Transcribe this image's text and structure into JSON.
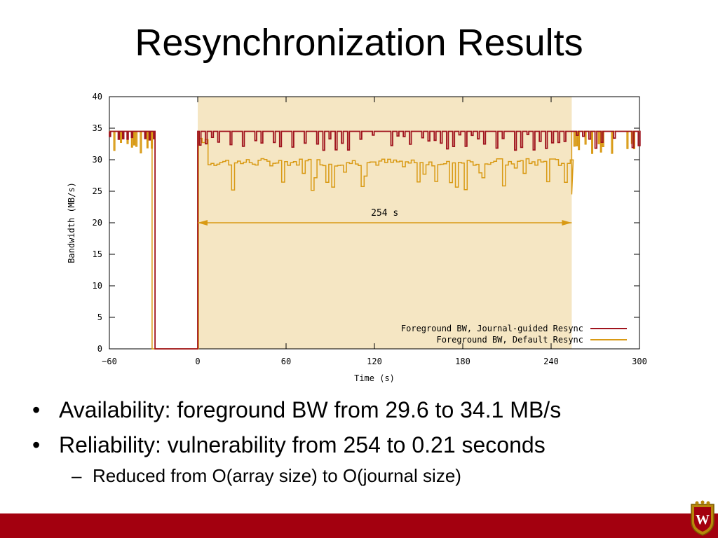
{
  "slide": {
    "title": "Resynchronization Results",
    "bullets": [
      "Availability: foreground BW from 29.6 to 34.1 MB/s",
      "Reliability: vulnerability from 254 to 0.21 seconds"
    ],
    "sub_bullets": [
      "Reduced from O(array size) to O(journal size)"
    ],
    "bullet_marker": "•",
    "sub_bullet_marker": "–",
    "logo": "W",
    "logo_icon": "university-crest-icon"
  },
  "chart_data": {
    "type": "line",
    "xlabel": "Time (s)",
    "ylabel": "Bandwidth (MB/s)",
    "xlim": [
      -60,
      300
    ],
    "ylim": [
      0,
      40
    ],
    "xticks": [
      -60,
      0,
      60,
      120,
      180,
      240,
      300
    ],
    "yticks": [
      0,
      5,
      10,
      15,
      20,
      25,
      30,
      35,
      40
    ],
    "shaded_region": {
      "x_start": 0,
      "x_end": 254,
      "color": "#f5e6c3"
    },
    "annotation": {
      "text": "254 s",
      "x_start": 0,
      "x_end": 254,
      "y": 20
    },
    "grid": "y-ticks only",
    "legend_position": "bottom-right",
    "series": [
      {
        "name": "Foreground BW, Journal-guided Resync",
        "color": "#a0141e",
        "x": [
          -60,
          -30,
          -30,
          -29,
          -29,
          -60,
          0,
          0,
          1,
          300
        ],
        "y": [
          34.5,
          34.5,
          0,
          0,
          34.5,
          34.5,
          0,
          34.5,
          34.5,
          34.5
        ],
        "dips": [
          33,
          31.5
        ]
      },
      {
        "name": "Foreground BW, Default Resync",
        "color": "#d99a14",
        "x": [
          -60,
          -31,
          -31,
          0,
          0,
          2,
          254,
          254,
          300
        ],
        "y": [
          34.5,
          34.5,
          0,
          0,
          29.6,
          29.6,
          29.6,
          34.1,
          34.1
        ],
        "mean_during_resync": 29.6,
        "mean_after_resync": 34.1
      }
    ]
  }
}
